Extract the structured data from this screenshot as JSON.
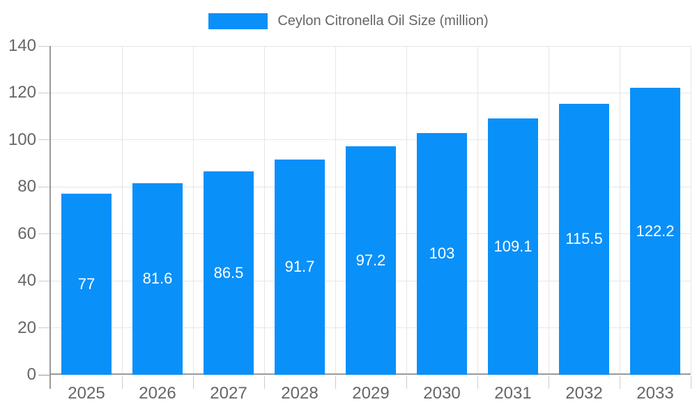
{
  "chart_data": {
    "type": "bar",
    "title": "Ceylon Citronella Oil Size (million)",
    "legend_position": "top",
    "categories": [
      "2025",
      "2026",
      "2027",
      "2028",
      "2029",
      "2030",
      "2031",
      "2032",
      "2033"
    ],
    "values": [
      77,
      81.6,
      86.5,
      91.7,
      97.2,
      103,
      109.1,
      115.5,
      122.2
    ],
    "xlabel": "",
    "ylabel": "",
    "ylim": [
      0,
      140
    ],
    "y_ticks": [
      0,
      20,
      40,
      60,
      80,
      100,
      120,
      140
    ],
    "grid": true,
    "bar_value_labels_shown": true,
    "colors": {
      "bar": "#0a90f9",
      "grid": "#e6e6e6",
      "tick": "#cccccc",
      "axis": "#999999",
      "text": "#666666",
      "bar_label": "#ffffff",
      "background": "#ffffff"
    }
  }
}
